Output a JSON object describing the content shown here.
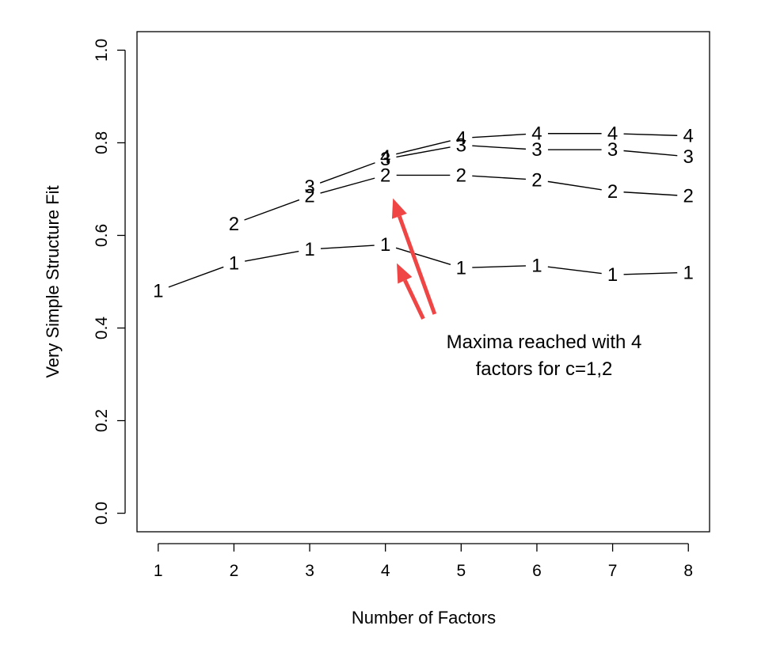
{
  "chart_data": {
    "type": "line",
    "xlabel": "Number of Factors",
    "ylabel": "Very Simple Structure Fit",
    "xlim": [
      0.72,
      8.28
    ],
    "ylim": [
      -0.04,
      1.04
    ],
    "x": [
      1,
      2,
      3,
      4,
      5,
      6,
      7,
      8
    ],
    "x_ticks": [
      "1",
      "2",
      "3",
      "4",
      "5",
      "6",
      "7",
      "8"
    ],
    "y_ticks": [
      "0.0",
      "0.2",
      "0.4",
      "0.6",
      "0.8",
      "1.0"
    ],
    "series": [
      {
        "name": "1",
        "x": [
          1,
          2,
          3,
          4,
          5,
          6,
          7,
          8
        ],
        "values": [
          0.48,
          0.54,
          0.57,
          0.58,
          0.53,
          0.535,
          0.515,
          0.52
        ]
      },
      {
        "name": "2",
        "x": [
          2,
          3,
          4,
          5,
          6,
          7,
          8
        ],
        "values": [
          0.625,
          0.685,
          0.73,
          0.73,
          0.72,
          0.695,
          0.685
        ]
      },
      {
        "name": "3",
        "x": [
          3,
          4,
          5,
          6,
          7,
          8
        ],
        "values": [
          0.705,
          0.765,
          0.795,
          0.785,
          0.785,
          0.77
        ]
      },
      {
        "name": "4",
        "x": [
          4,
          5,
          6,
          7,
          8
        ],
        "values": [
          0.77,
          0.81,
          0.82,
          0.82,
          0.815
        ]
      }
    ],
    "annotation": {
      "lines": [
        "Maxima reached with 4",
        "factors for c=1,2"
      ],
      "arrow_color": "#f04545",
      "arrows": [
        {
          "from": {
            "x": 4.5,
            "y": 0.42
          },
          "to": {
            "x": 4.15,
            "y": 0.54
          }
        },
        {
          "from": {
            "x": 4.65,
            "y": 0.43
          },
          "to": {
            "x": 4.1,
            "y": 0.68
          }
        }
      ]
    },
    "grid": false,
    "line_color": "#000000"
  }
}
